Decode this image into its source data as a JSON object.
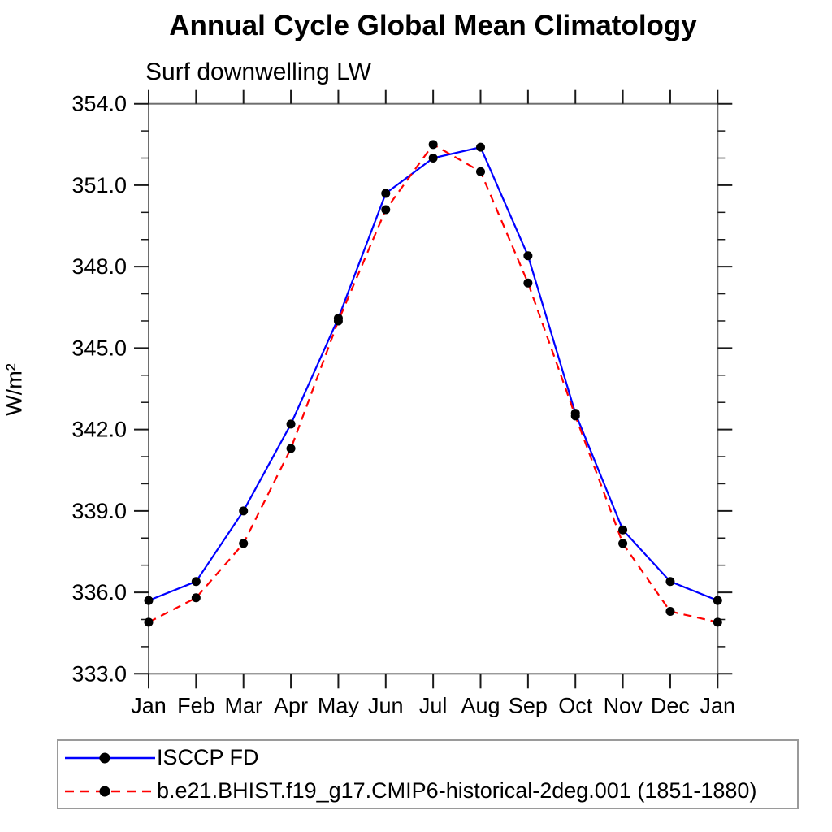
{
  "chart_data": {
    "type": "line",
    "title": "Annual Cycle Global Mean Climatology",
    "subtitle": "Surf downwelling LW",
    "ylabel": "W/m²",
    "xlabel": "",
    "categories": [
      "Jan",
      "Feb",
      "Mar",
      "Apr",
      "May",
      "Jun",
      "Jul",
      "Aug",
      "Sep",
      "Oct",
      "Nov",
      "Dec",
      "Jan"
    ],
    "ylim": [
      333.0,
      354.0
    ],
    "ytick_step": 3.0,
    "yminor_step": 1.0,
    "ytick_labels": [
      "333.0",
      "336.0",
      "339.0",
      "342.0",
      "345.0",
      "348.0",
      "351.0",
      "354.0"
    ],
    "grid": false,
    "legend_position": "bottom-left-box",
    "marker": "filled-circle",
    "marker_color": "#000000",
    "axis_color": "#6e6e6e",
    "tick_color": "#1a1a1a",
    "series": [
      {
        "name": "ISCCP FD",
        "color": "#0000ff",
        "dash": "solid",
        "values": [
          335.7,
          336.4,
          339.0,
          342.2,
          346.1,
          350.7,
          352.0,
          352.4,
          348.4,
          342.6,
          338.3,
          336.4,
          335.7
        ]
      },
      {
        "name": "b.e21.BHIST.f19_g17.CMIP6-historical-2deg.001 (1851-1880)",
        "color": "#ff0000",
        "dash": "dashed",
        "values": [
          334.9,
          335.8,
          337.8,
          341.3,
          346.0,
          350.1,
          352.5,
          351.5,
          347.4,
          342.5,
          337.8,
          335.3,
          334.9
        ]
      }
    ]
  }
}
